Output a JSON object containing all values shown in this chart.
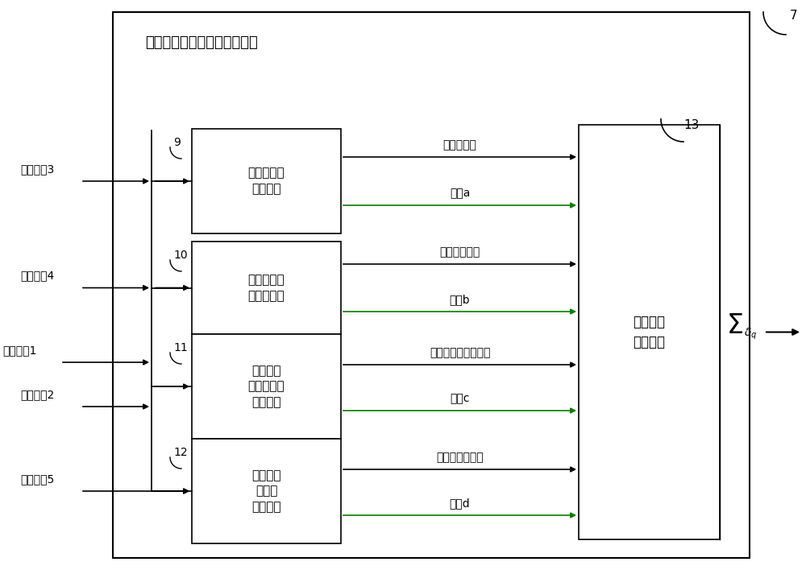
{
  "bg_color": "#ffffff",
  "title_text": "估计误差协方差矩阵处理单元",
  "label_7": "7",
  "label_13": "13",
  "box_configs": [
    {
      "label": "四阶累积量\n处理单元",
      "num": "9",
      "row": 0
    },
    {
      "label": "双二阶累积\n量处理单元",
      "num": "10",
      "row": 1
    },
    {
      "label": "二阶噪声\n混合累积量\n处理单元",
      "num": "11",
      "row": 2
    },
    {
      "label": "四阶噪声\n累积量\n处理单元",
      "num": "12",
      "row": 3
    }
  ],
  "arrow_configs": [
    {
      "label": "四阶累积量",
      "row": 0,
      "sub": 0,
      "color": "#000000"
    },
    {
      "label": "索引a",
      "row": 0,
      "sub": 1,
      "color": "#008000"
    },
    {
      "label": "双二阶累积量",
      "row": 1,
      "sub": 0,
      "color": "#000000"
    },
    {
      "label": "索引b",
      "row": 1,
      "sub": 1,
      "color": "#008000"
    },
    {
      "label": "二阶噪声混合累积量",
      "row": 2,
      "sub": 0,
      "color": "#000000"
    },
    {
      "label": "索引c",
      "row": 2,
      "sub": 1,
      "color": "#008000"
    },
    {
      "label": "四阶噪声累积量",
      "row": 3,
      "sub": 0,
      "color": "#000000"
    },
    {
      "label": "索引d",
      "row": 3,
      "sub": 1,
      "color": "#008000"
    }
  ],
  "input_configs": [
    {
      "text": "输入参数3",
      "row": 0
    },
    {
      "text": "输入参数4",
      "row": 1
    },
    {
      "text": "输入参数1",
      "bus": true
    },
    {
      "text": "输入参数2",
      "row": 2
    },
    {
      "text": "输入参数5",
      "row": 3
    }
  ]
}
